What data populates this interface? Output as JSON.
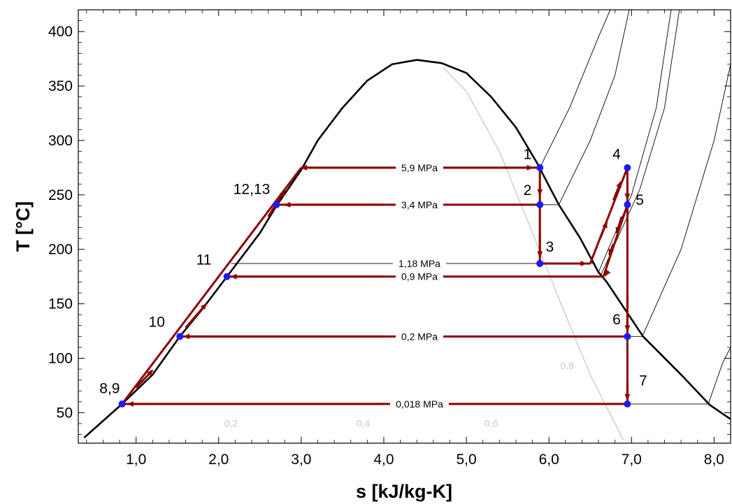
{
  "chart_data": {
    "type": "line",
    "title": "",
    "xlabel": "s [kJ/kg-K]",
    "ylabel": "T [°C]",
    "xlim": [
      0.3,
      8.2
    ],
    "ylim": [
      22,
      420
    ],
    "grid": false,
    "x_ticks": [
      {
        "value": 1.0,
        "label": "1,0"
      },
      {
        "value": 2.0,
        "label": "2,0"
      },
      {
        "value": 3.0,
        "label": "3,0"
      },
      {
        "value": 4.0,
        "label": "4,0"
      },
      {
        "value": 5.0,
        "label": "5,0"
      },
      {
        "value": 6.0,
        "label": "6,0"
      },
      {
        "value": 7.0,
        "label": "7,0"
      },
      {
        "value": 8.0,
        "label": "8,0"
      }
    ],
    "y_ticks": [
      {
        "value": 50,
        "label": "50"
      },
      {
        "value": 100,
        "label": "100"
      },
      {
        "value": 150,
        "label": "150"
      },
      {
        "value": 200,
        "label": "200"
      },
      {
        "value": 250,
        "label": "250"
      },
      {
        "value": 300,
        "label": "300"
      },
      {
        "value": 350,
        "label": "350"
      },
      {
        "value": 400,
        "label": "400"
      }
    ],
    "saturation_dome": {
      "color": "#000000",
      "points": [
        [
          0.37,
          27
        ],
        [
          0.83,
          58
        ],
        [
          1.2,
          85
        ],
        [
          1.53,
          120
        ],
        [
          1.8,
          145
        ],
        [
          2.1,
          175
        ],
        [
          2.5,
          215
        ],
        [
          2.7,
          240
        ],
        [
          3.0,
          273
        ],
        [
          3.2,
          300
        ],
        [
          3.5,
          330
        ],
        [
          3.8,
          355
        ],
        [
          4.1,
          370
        ],
        [
          4.4,
          374
        ],
        [
          4.7,
          371
        ],
        [
          5.0,
          362
        ],
        [
          5.3,
          340
        ],
        [
          5.6,
          312
        ],
        [
          5.89,
          275
        ],
        [
          5.92,
          270
        ],
        [
          6.12,
          241
        ],
        [
          6.38,
          210
        ],
        [
          6.6,
          179
        ],
        [
          6.7,
          170
        ],
        [
          7.14,
          120
        ],
        [
          7.6,
          85
        ],
        [
          7.95,
          57
        ],
        [
          8.2,
          44
        ]
      ]
    },
    "quality_lines": [
      {
        "label": "0,2",
        "color": "#c8c8c8",
        "label_x": 2.15,
        "label_y": 37,
        "points": []
      },
      {
        "label": "0,4",
        "color": "#c8c8c8",
        "label_x": 3.75,
        "label_y": 37,
        "points": []
      },
      {
        "label": "0,6",
        "color": "#c8c8c8",
        "label_x": 5.3,
        "label_y": 37,
        "points": []
      },
      {
        "label": "0,8",
        "color": "#c8c8c8",
        "label_x": 6.22,
        "label_y": 90,
        "points": [
          [
            4.72,
            367
          ],
          [
            5.0,
            345
          ],
          [
            5.4,
            290
          ],
          [
            5.8,
            215
          ],
          [
            6.2,
            140
          ],
          [
            6.5,
            85
          ],
          [
            6.9,
            25
          ]
        ]
      }
    ],
    "isobars": [
      {
        "label": "5,9 MPa",
        "y": 275,
        "x_from": 3.0,
        "x_to": 5.89
      },
      {
        "label": "3,4 MPa",
        "y": 241,
        "x_from": 2.7,
        "x_to": 6.12
      },
      {
        "label": "1,18 MPa",
        "y": 187,
        "x_from": 2.15,
        "x_to": 6.56
      },
      {
        "label": "0,9 MPa",
        "y": 175,
        "x_from": 2.1,
        "x_to": 6.62
      },
      {
        "label": "0,2 MPa",
        "y": 120,
        "x_from": 1.53,
        "x_to": 7.13
      },
      {
        "label": "0,018 MPa",
        "y": 58,
        "x_from": 0.83,
        "x_to": 7.93
      }
    ],
    "superheat_lines": [
      [
        [
          5.89,
          275
        ],
        [
          6.25,
          330
        ],
        [
          6.6,
          395
        ],
        [
          6.8,
          430
        ]
      ],
      [
        [
          6.12,
          241
        ],
        [
          6.5,
          300
        ],
        [
          6.8,
          360
        ],
        [
          7.0,
          430
        ]
      ],
      [
        [
          6.6,
          179
        ],
        [
          7.0,
          250
        ],
        [
          7.3,
          330
        ],
        [
          7.5,
          430
        ]
      ],
      [
        [
          6.62,
          175
        ],
        [
          7.1,
          255
        ],
        [
          7.4,
          330
        ],
        [
          7.6,
          430
        ]
      ],
      [
        [
          7.13,
          120
        ],
        [
          7.6,
          200
        ],
        [
          8.0,
          300
        ],
        [
          8.2,
          370
        ]
      ],
      [
        [
          7.93,
          58
        ],
        [
          8.1,
          95
        ],
        [
          8.2,
          110
        ]
      ]
    ],
    "cycle": {
      "color": "#8b0000",
      "segments": [
        [
          [
            5.89,
            275
          ],
          [
            3.0,
            275
          ]
        ],
        [
          [
            3.0,
            275
          ],
          [
            0.83,
            58
          ]
        ],
        [
          [
            5.89,
            275
          ],
          [
            5.89,
            241
          ]
        ],
        [
          [
            5.89,
            241
          ],
          [
            2.7,
            241
          ]
        ],
        [
          [
            5.89,
            241
          ],
          [
            5.89,
            187
          ]
        ],
        [
          [
            5.89,
            187
          ],
          [
            6.5,
            187
          ]
        ],
        [
          [
            6.5,
            187
          ],
          [
            6.95,
            275
          ]
        ],
        [
          [
            6.95,
            275
          ],
          [
            6.95,
            241
          ]
        ],
        [
          [
            6.95,
            241
          ],
          [
            6.66,
            175
          ]
        ],
        [
          [
            6.66,
            175
          ],
          [
            2.1,
            175
          ]
        ],
        [
          [
            6.95,
            241
          ],
          [
            6.95,
            120
          ]
        ],
        [
          [
            6.95,
            120
          ],
          [
            1.53,
            120
          ]
        ],
        [
          [
            6.95,
            120
          ],
          [
            6.95,
            58
          ]
        ],
        [
          [
            6.95,
            58
          ],
          [
            0.83,
            58
          ]
        ]
      ],
      "arrows": [
        [
          [
            4.4,
            275
          ],
          [
            5.8,
            275
          ]
        ],
        [
          [
            4.3,
            275
          ],
          [
            3.0,
            275
          ]
        ],
        [
          [
            2.6,
            230
          ],
          [
            2.8,
            254
          ]
        ],
        [
          [
            1.6,
            128
          ],
          [
            1.85,
            150
          ]
        ],
        [
          [
            1.0,
            73
          ],
          [
            1.2,
            89
          ]
        ],
        [
          [
            5.89,
            260
          ],
          [
            5.89,
            250
          ]
        ],
        [
          [
            5.89,
            215
          ],
          [
            5.89,
            193
          ]
        ],
        [
          [
            6.15,
            187
          ],
          [
            6.45,
            187
          ]
        ],
        [
          [
            6.62,
            210
          ],
          [
            6.7,
            225
          ]
        ],
        [
          [
            6.78,
            245
          ],
          [
            6.87,
            262
          ]
        ],
        [
          [
            6.95,
            255
          ],
          [
            6.95,
            246
          ]
        ],
        [
          [
            6.88,
            230
          ],
          [
            6.82,
            215
          ]
        ],
        [
          [
            6.78,
            205
          ],
          [
            6.73,
            195
          ]
        ],
        [
          [
            6.72,
            180
          ],
          [
            6.68,
            176
          ]
        ],
        [
          [
            4.0,
            175
          ],
          [
            2.15,
            175
          ]
        ],
        [
          [
            4.0,
            241
          ],
          [
            2.8,
            241
          ]
        ],
        [
          [
            4.0,
            120
          ],
          [
            1.58,
            120
          ]
        ],
        [
          [
            6.95,
            160
          ],
          [
            6.95,
            125
          ]
        ],
        [
          [
            6.95,
            80
          ],
          [
            6.95,
            62
          ]
        ],
        [
          [
            4.0,
            58
          ],
          [
            0.9,
            58
          ]
        ]
      ]
    },
    "state_points": [
      {
        "label": "1",
        "x": 5.89,
        "y": 275,
        "label_x": 5.74,
        "label_y": 283
      },
      {
        "label": "2",
        "x": 5.89,
        "y": 241,
        "label_x": 5.74,
        "label_y": 250
      },
      {
        "label": "3",
        "x": 5.89,
        "y": 187,
        "label_x": 6.01,
        "label_y": 198
      },
      {
        "label": "4",
        "x": 6.95,
        "y": 275,
        "label_x": 6.82,
        "label_y": 283
      },
      {
        "label": "5",
        "x": 6.95,
        "y": 241,
        "label_x": 7.1,
        "label_y": 241
      },
      {
        "label": "6",
        "x": 6.95,
        "y": 120,
        "label_x": 6.82,
        "label_y": 131
      },
      {
        "label": "7",
        "x": 6.95,
        "y": 58,
        "label_x": 7.14,
        "label_y": 75
      },
      {
        "label": "8,9",
        "x": 0.83,
        "y": 58,
        "label_x": 0.68,
        "label_y": 68
      },
      {
        "label": "10",
        "x": 1.53,
        "y": 120,
        "label_x": 1.25,
        "label_y": 129
      },
      {
        "label": "11",
        "x": 2.1,
        "y": 175,
        "label_x": 1.82,
        "label_y": 186
      },
      {
        "label": "12,13",
        "x": 2.7,
        "y": 241,
        "label_x": 2.4,
        "label_y": 251
      }
    ]
  }
}
